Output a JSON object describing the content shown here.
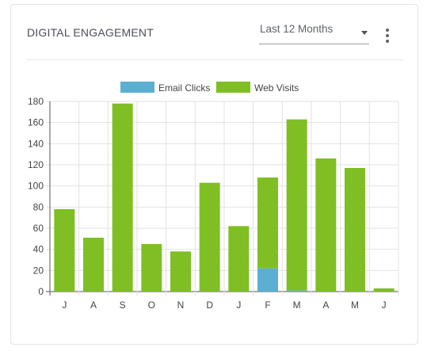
{
  "card": {
    "title": "DIGITAL ENGAGEMENT",
    "period_selected": "Last 12 Months",
    "icons": {
      "dropdown": "chevron-down-icon",
      "menu": "more-vertical-icon"
    }
  },
  "colors": {
    "email_clicks": "#5aafd3",
    "web_visits": "#7fbf24",
    "grid": "#e2e2e2",
    "axis": "#555555"
  },
  "chart_data": {
    "type": "bar",
    "stacked": true,
    "categories": [
      "J",
      "A",
      "S",
      "O",
      "N",
      "D",
      "J",
      "F",
      "M",
      "A",
      "M",
      "J"
    ],
    "series": [
      {
        "name": "Email Clicks",
        "values": [
          0,
          0,
          0,
          0,
          0,
          0,
          0,
          22,
          1,
          0,
          0,
          0
        ]
      },
      {
        "name": "Web Visits",
        "values": [
          78,
          51,
          178,
          45,
          38,
          103,
          62,
          86,
          162,
          126,
          117,
          3
        ]
      }
    ],
    "y_ticks": [
      0,
      20,
      40,
      60,
      80,
      100,
      120,
      140,
      160,
      180
    ],
    "ylim": [
      0,
      180
    ],
    "grid": true,
    "legend_position": "top-center",
    "title": "",
    "xlabel": "",
    "ylabel": ""
  }
}
